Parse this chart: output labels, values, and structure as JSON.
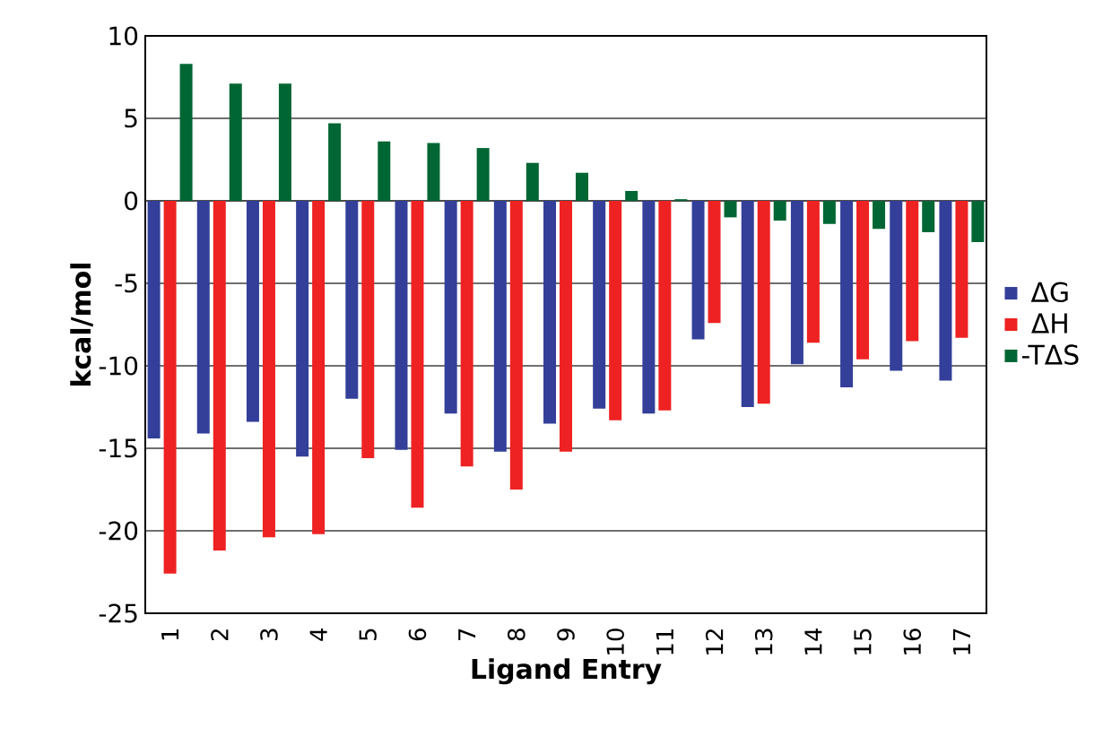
{
  "chart_data": {
    "type": "bar",
    "xlabel": "Ligand Entry",
    "ylabel": "kcal/mol",
    "categories": [
      "1",
      "2",
      "3",
      "4",
      "5",
      "6",
      "7",
      "8",
      "9",
      "10",
      "11",
      "12",
      "13",
      "14",
      "15",
      "16",
      "17"
    ],
    "series": [
      {
        "name": "ΔG",
        "color": "#333f99",
        "values": [
          -14.4,
          -14.1,
          -13.4,
          -15.5,
          -12.0,
          -15.1,
          -12.9,
          -15.2,
          -13.5,
          -12.6,
          -12.9,
          -8.4,
          -12.5,
          -9.9,
          -11.3,
          -10.3,
          -10.9
        ]
      },
      {
        "name": "ΔH",
        "color": "#ee2222",
        "values": [
          -22.6,
          -21.2,
          -20.4,
          -20.2,
          -15.6,
          -18.6,
          -16.1,
          -17.5,
          -15.2,
          -13.3,
          -12.7,
          -7.4,
          -12.3,
          -8.6,
          -9.6,
          -8.5,
          -8.3
        ]
      },
      {
        "name": "-TΔS",
        "color": "#006633",
        "values": [
          8.3,
          7.1,
          7.1,
          4.7,
          3.6,
          3.5,
          3.2,
          2.3,
          1.7,
          0.6,
          0.1,
          -1.0,
          -1.2,
          -1.4,
          -1.7,
          -1.9,
          -2.5
        ]
      }
    ],
    "ylim": [
      -25,
      10
    ],
    "yticks": [
      -25,
      -20,
      -15,
      -10,
      -5,
      0,
      5,
      10
    ],
    "grid": "y",
    "legend": "right"
  }
}
